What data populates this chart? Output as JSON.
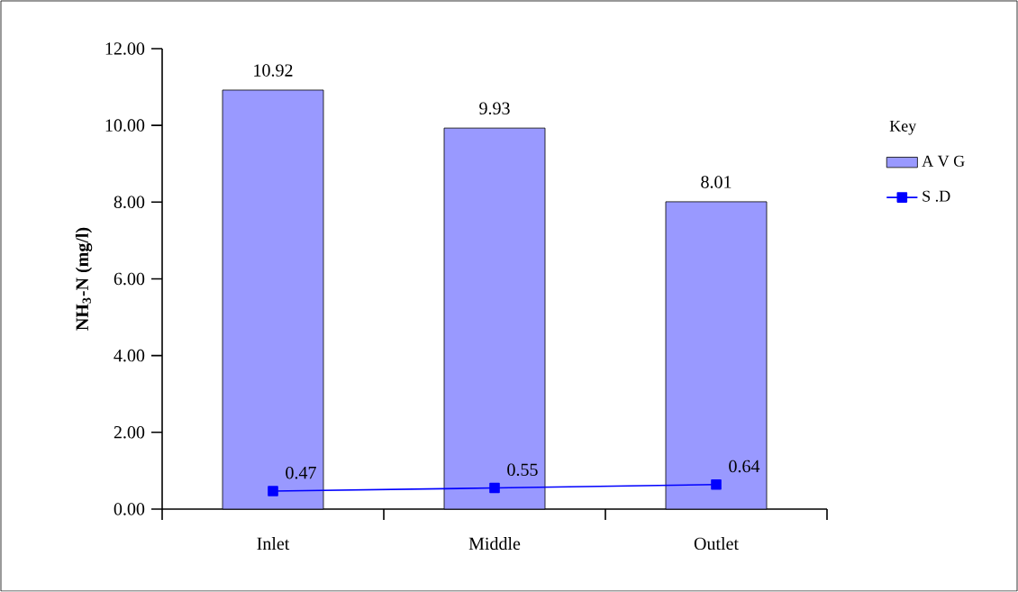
{
  "chart_data": {
    "type": "bar",
    "categories": [
      "Inlet",
      "Middle",
      "Outlet"
    ],
    "ylabel": "NH$_{3}$-N (mg/l)",
    "legend_title": "Key",
    "legend": "right",
    "data_labels": true,
    "ylim": [
      0,
      12
    ],
    "yticks": [
      {
        "value": 0,
        "label": "0.00"
      },
      {
        "value": 2,
        "label": "2.00"
      },
      {
        "value": 4,
        "label": "4.00"
      },
      {
        "value": 6,
        "label": "6.00"
      },
      {
        "value": 8,
        "label": "8.00"
      },
      {
        "value": 10,
        "label": "10.00"
      },
      {
        "value": 12,
        "label": "12.00"
      }
    ],
    "series": [
      {
        "name": "A V G",
        "color": "#9999ff",
        "values": [
          10.92,
          9.93,
          8.01
        ]
      },
      {
        "name": "S .D",
        "type": "line",
        "color": "#0000ff",
        "marker": "square",
        "values": [
          0.47,
          0.55,
          0.64
        ]
      }
    ]
  }
}
